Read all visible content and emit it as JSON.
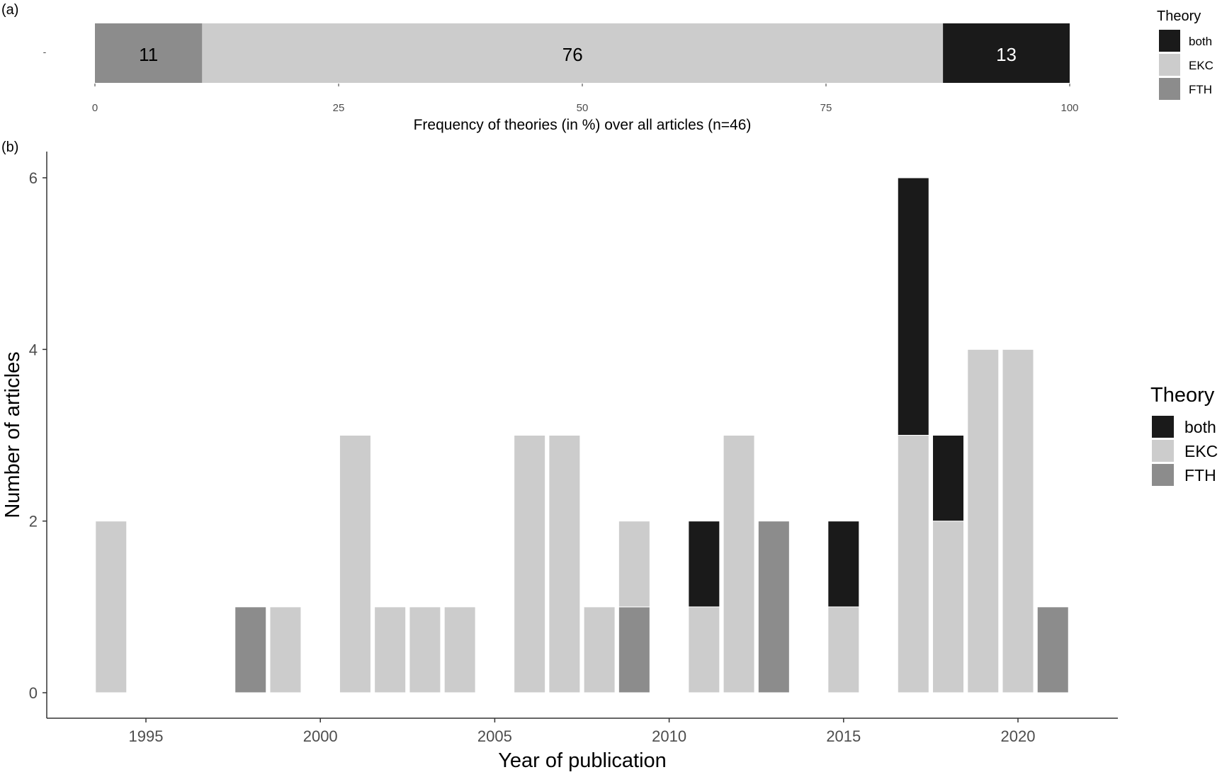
{
  "chart_data": [
    {
      "panel_label": "(a)",
      "type": "bar",
      "orientation": "horizontal-stacked",
      "xlabel": "Frequency of theories (in %) over all articles (n=46)",
      "xlim": [
        0,
        100
      ],
      "xticks": [
        0,
        25,
        50,
        75,
        100
      ],
      "segments": [
        {
          "name": "FTH",
          "value": 11,
          "label": "11"
        },
        {
          "name": "EKC",
          "value": 76,
          "label": "76"
        },
        {
          "name": "both",
          "value": 13,
          "label": "13"
        }
      ],
      "legend": {
        "title": "Theory",
        "entries": [
          "both",
          "EKC",
          "FTH"
        ],
        "position": "right"
      },
      "grid": false
    },
    {
      "panel_label": "(b)",
      "type": "bar",
      "orientation": "vertical-stacked",
      "xlabel": "Year of publication",
      "ylabel": "Number of articles",
      "ylim": [
        0,
        6.3
      ],
      "yticks": [
        0,
        2,
        4,
        6
      ],
      "xticks": [
        1995,
        2000,
        2005,
        2010,
        2015,
        2020
      ],
      "x": [
        1994,
        1998,
        1999,
        2001,
        2002,
        2003,
        2004,
        2006,
        2007,
        2008,
        2009,
        2011,
        2012,
        2013,
        2015,
        2017,
        2018,
        2019,
        2020,
        2021
      ],
      "series": [
        {
          "name": "FTH",
          "values": [
            0,
            1,
            0,
            0,
            0,
            0,
            0,
            0,
            0,
            0,
            1,
            0,
            0,
            2,
            0,
            0,
            0,
            0,
            0,
            1
          ]
        },
        {
          "name": "EKC",
          "values": [
            2,
            0,
            1,
            3,
            1,
            1,
            1,
            3,
            3,
            1,
            1,
            1,
            3,
            0,
            1,
            3,
            2,
            4,
            4,
            0
          ]
        },
        {
          "name": "both",
          "values": [
            0,
            0,
            0,
            0,
            0,
            0,
            0,
            0,
            0,
            0,
            0,
            1,
            0,
            0,
            1,
            3,
            1,
            0,
            0,
            0
          ]
        }
      ],
      "legend": {
        "title": "Theory",
        "entries": [
          "both",
          "EKC",
          "FTH"
        ],
        "position": "right"
      },
      "grid": false
    }
  ],
  "colors": {
    "both": "#1a1a1a",
    "EKC": "#cccccc",
    "FTH": "#8c8c8c",
    "axis": "#333333",
    "tick_text": "#4d4d4d"
  }
}
